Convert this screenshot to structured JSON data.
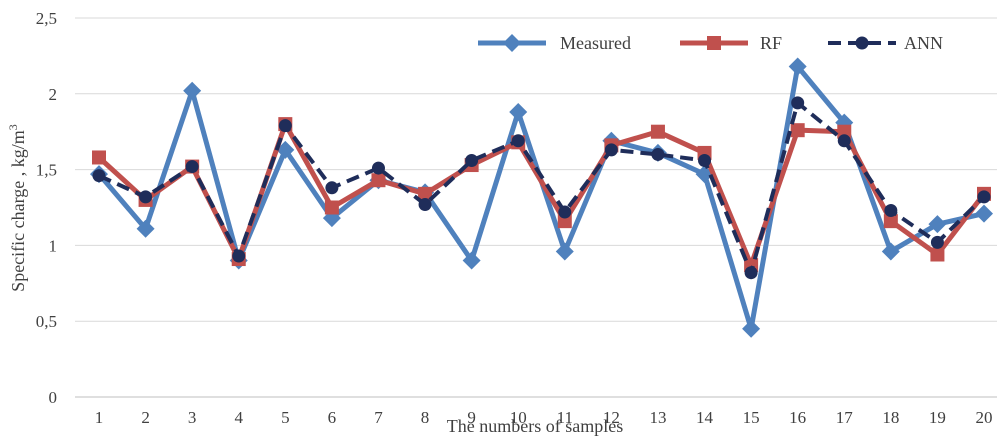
{
  "chart_data": {
    "type": "line",
    "xlabel": "The numbers of samples",
    "ylabel": "Specific charge , kg/m",
    "ylabel_superscript": "3",
    "ylim": [
      0,
      2.5
    ],
    "yticks": [
      "0",
      "0,5",
      "1",
      "1,5",
      "2",
      "2,5"
    ],
    "categories": [
      "1",
      "2",
      "3",
      "4",
      "5",
      "6",
      "7",
      "8",
      "9",
      "10",
      "11",
      "12",
      "13",
      "14",
      "15",
      "16",
      "17",
      "18",
      "19",
      "20"
    ],
    "grid": "horizontal",
    "legend_position": "top-right",
    "series": [
      {
        "name": "Measured",
        "color": "#4f81bd",
        "marker": "diamond",
        "dashed": false,
        "values": [
          1.47,
          1.11,
          2.02,
          0.9,
          1.63,
          1.18,
          1.43,
          1.35,
          0.9,
          1.88,
          0.96,
          1.69,
          1.61,
          1.47,
          0.45,
          2.18,
          1.81,
          0.96,
          1.14,
          1.21
        ]
      },
      {
        "name": "RF",
        "color": "#c0504d",
        "marker": "square",
        "dashed": false,
        "values": [
          1.58,
          1.3,
          1.52,
          0.91,
          1.8,
          1.25,
          1.43,
          1.34,
          1.53,
          1.68,
          1.16,
          1.66,
          1.75,
          1.61,
          0.87,
          1.76,
          1.75,
          1.16,
          0.94,
          1.34
        ]
      },
      {
        "name": "ANN",
        "color": "#1f2d5a",
        "marker": "circle",
        "dashed": true,
        "values": [
          1.46,
          1.32,
          1.52,
          0.93,
          1.79,
          1.38,
          1.51,
          1.27,
          1.56,
          1.69,
          1.22,
          1.63,
          1.6,
          1.56,
          0.82,
          1.94,
          1.69,
          1.23,
          1.02,
          1.32
        ]
      }
    ]
  }
}
